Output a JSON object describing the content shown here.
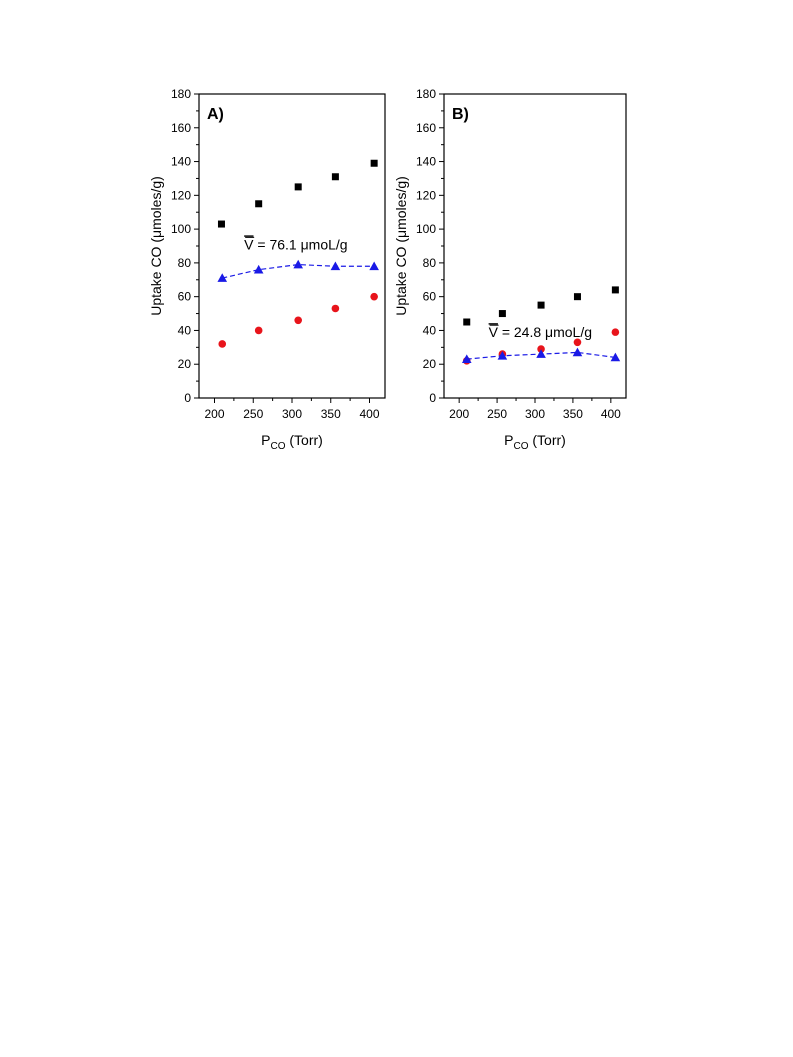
{
  "chart_data": [
    {
      "type": "scatter",
      "panel_label": "A)",
      "xlabel_main": "P",
      "xlabel_sub": "CO",
      "xlabel_rest": " (Torr)",
      "ylabel_pre": "Uptake CO (",
      "ylabel_mu": "μ",
      "ylabel_post": "moles/g)",
      "xlim": [
        180,
        420
      ],
      "ylim": [
        0,
        180
      ],
      "xticks": [
        200,
        250,
        300,
        350,
        400
      ],
      "yticks": [
        0,
        20,
        40,
        60,
        80,
        100,
        120,
        140,
        160,
        180
      ],
      "annotation_sym": "V",
      "annotation_text": " = 76.1 μmoL/g",
      "annotation_at": [
        305,
        88
      ],
      "series": [
        {
          "marker": "square",
          "color": "#000000",
          "line": false,
          "x": [
            209,
            257,
            308,
            356,
            406
          ],
          "y": [
            103,
            115,
            125,
            131,
            139
          ]
        },
        {
          "marker": "circle",
          "color": "#e8141b",
          "line": false,
          "x": [
            210,
            257,
            308,
            356,
            406
          ],
          "y": [
            32,
            40,
            46,
            53,
            60
          ]
        },
        {
          "marker": "triangle",
          "color": "#1a1ae6",
          "line": true,
          "x": [
            210,
            257,
            308,
            356,
            406
          ],
          "y": [
            71,
            76,
            79,
            78,
            78
          ]
        }
      ]
    },
    {
      "type": "scatter",
      "panel_label": "B)",
      "xlabel_main": "P",
      "xlabel_sub": "CO",
      "xlabel_rest": " (Torr)",
      "ylabel_pre": "Uptake CO (",
      "ylabel_mu": "μ",
      "ylabel_post": "moles/g)",
      "xlim": [
        180,
        420
      ],
      "ylim": [
        0,
        180
      ],
      "xticks": [
        200,
        250,
        300,
        350,
        400
      ],
      "yticks": [
        0,
        20,
        40,
        60,
        80,
        100,
        120,
        140,
        160,
        180
      ],
      "annotation_sym": "V",
      "annotation_text": " = 24.8 μmoL/g",
      "annotation_at": [
        307,
        36
      ],
      "series": [
        {
          "marker": "square",
          "color": "#000000",
          "line": false,
          "x": [
            210,
            257,
            308,
            356,
            406
          ],
          "y": [
            45,
            50,
            55,
            60,
            64
          ]
        },
        {
          "marker": "circle",
          "color": "#e8141b",
          "line": false,
          "x": [
            210,
            257,
            308,
            356,
            406
          ],
          "y": [
            22,
            26,
            29,
            33,
            39
          ]
        },
        {
          "marker": "triangle",
          "color": "#1a1ae6",
          "line": true,
          "x": [
            210,
            257,
            308,
            356,
            406
          ],
          "y": [
            23,
            25,
            26,
            27,
            24
          ]
        }
      ]
    }
  ]
}
